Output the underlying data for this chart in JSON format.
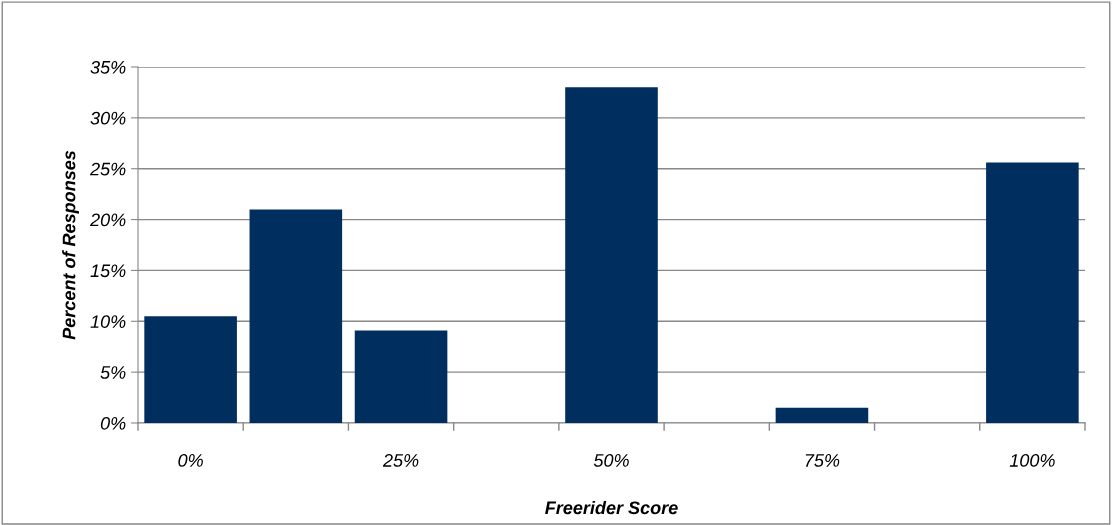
{
  "chart_data": {
    "type": "bar",
    "xlabel": "Freerider Score",
    "ylabel": "Percent of Responses",
    "categories": [
      "0%",
      null,
      "25%",
      null,
      "50%",
      null,
      "75%",
      null,
      "100%"
    ],
    "values": [
      10.5,
      21,
      9.1,
      null,
      33,
      null,
      1.5,
      null,
      25.6
    ],
    "color": "#002f5f",
    "ylim": [
      0,
      35
    ],
    "yticks": [
      {
        "value": 0,
        "label": "0%"
      },
      {
        "value": 5,
        "label": "5%"
      },
      {
        "value": 10,
        "label": "10%"
      },
      {
        "value": 15,
        "label": "15%"
      },
      {
        "value": 20,
        "label": "20%"
      },
      {
        "value": 25,
        "label": "25%"
      },
      {
        "value": 30,
        "label": "30%"
      },
      {
        "value": 35,
        "label": "35%"
      }
    ],
    "grid": "y",
    "legend": false
  }
}
